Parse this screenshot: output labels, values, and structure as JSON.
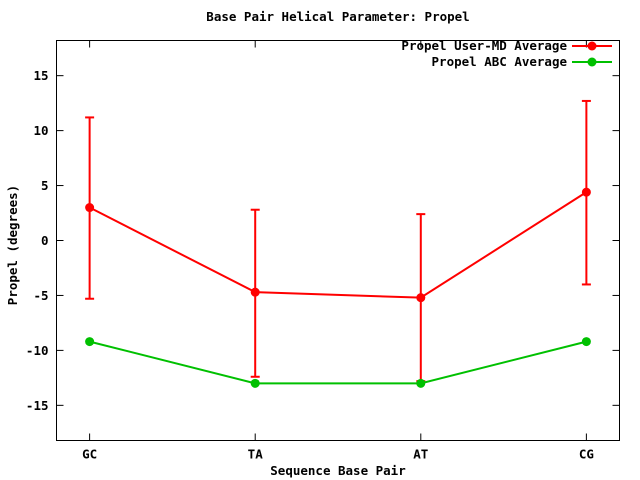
{
  "title": "Base Pair Helical Parameter: Propel",
  "chart_data": {
    "type": "line",
    "title": "Base Pair Helical Parameter: Propel",
    "categories": [
      "GC",
      "TA",
      "AT",
      "CG"
    ],
    "xlabel": "Sequence Base Pair",
    "ylabel": "Propel (degrees)",
    "yticks": [
      15,
      10,
      5,
      0,
      -5,
      -10,
      -15
    ],
    "ylim": [
      -18.2,
      18.2
    ],
    "xlim": [
      -0.2,
      3.2
    ],
    "grid": false,
    "legend_position": "top-right-inside",
    "background_color": "#ffffff",
    "axis_color": "#000000",
    "series": [
      {
        "name": "Propel User-MD Average",
        "color": "#ff0000",
        "marker": "filled-circle",
        "values": [
          3.0,
          -4.7,
          -5.2,
          4.4
        ],
        "err_min": [
          -5.3,
          -12.4,
          -12.8,
          -4.0
        ],
        "err_max": [
          11.2,
          2.8,
          2.4,
          12.7
        ]
      },
      {
        "name": "Propel ABC Average",
        "color": "#00c000",
        "marker": "filled-circle",
        "values": [
          -9.2,
          -13.0,
          -13.0,
          -9.2
        ]
      }
    ]
  }
}
